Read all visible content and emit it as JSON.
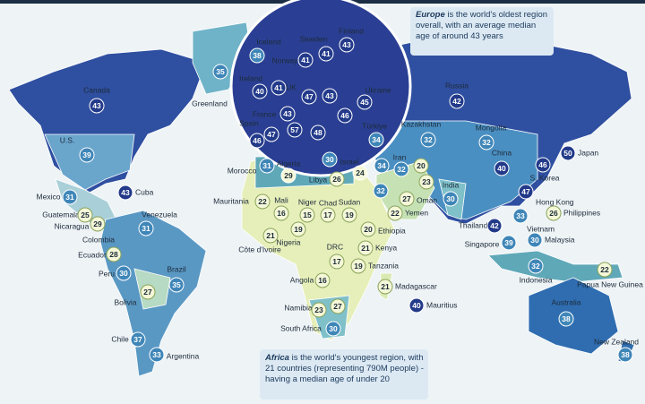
{
  "callouts": [
    {
      "lead": "Europe",
      "text": "is the world's oldest region overall, with an average median age of around 43 years"
    },
    {
      "lead": "Africa",
      "text": "is the world's youngest region, with 21 countries (representing 790M people) - having a median age of under 20"
    }
  ],
  "countries": [
    {
      "name": "Canada",
      "age": 43
    },
    {
      "name": "U.S.",
      "age": 39
    },
    {
      "name": "Mexico",
      "age": 31
    },
    {
      "name": "Cuba",
      "age": 43
    },
    {
      "name": "Guatemala",
      "age": 25
    },
    {
      "name": "Nicaragua",
      "age": 29
    },
    {
      "name": "Venezuela",
      "age": 31
    },
    {
      "name": "Colombia"
    },
    {
      "name": "Ecuador",
      "age": 28
    },
    {
      "name": "Peru",
      "age": 30
    },
    {
      "name": "Brazil",
      "age": 35
    },
    {
      "name": "Bolivia",
      "age": 27
    },
    {
      "name": "Chile",
      "age": 37
    },
    {
      "name": "Argentina",
      "age": 33
    },
    {
      "name": "Greenland",
      "age": 35
    },
    {
      "name": "Iceland",
      "age": 38
    },
    {
      "name": "Norway",
      "age": 41
    },
    {
      "name": "Sweden",
      "age": 41
    },
    {
      "name": "Finland",
      "age": 43
    },
    {
      "name": "Ireland",
      "age": 40
    },
    {
      "name": "UK",
      "age": 41
    },
    {
      "name": "France",
      "age": 43
    },
    {
      "name": "Spain",
      "age": 47
    },
    {
      "name": null,
      "age": 46
    },
    {
      "name": null,
      "age": 57
    },
    {
      "name": null,
      "age": 47
    },
    {
      "name": null,
      "age": 43
    },
    {
      "name": null,
      "age": 48
    },
    {
      "name": null,
      "age": 46
    },
    {
      "name": "Ukraine",
      "age": 45
    },
    {
      "name": "Türkiye",
      "age": 34
    },
    {
      "name": "Kazakhstan",
      "age": 32
    },
    {
      "name": "Russia",
      "age": 42
    },
    {
      "name": "Mongolia",
      "age": 32
    },
    {
      "name": "China",
      "age": 40
    },
    {
      "name": "Japan",
      "age": 50
    },
    {
      "name": "S. Korea",
      "age": 46
    },
    {
      "name": "Hong Kong",
      "age": 47
    },
    {
      "name": "Morocco",
      "age": 31
    },
    {
      "name": "Algeria",
      "age": 29
    },
    {
      "name": "Libya",
      "age": 26
    },
    {
      "name": null,
      "age": 30
    },
    {
      "name": "Israel",
      "age": 24
    },
    {
      "name": null,
      "age": 34
    },
    {
      "name": "Iran",
      "age": 32
    },
    {
      "name": null,
      "age": 20
    },
    {
      "name": null,
      "age": 23
    },
    {
      "name": null,
      "age": 32
    },
    {
      "name": "Oman",
      "age": 27
    },
    {
      "name": "Yemen",
      "age": 22
    },
    {
      "name": "India",
      "age": 30
    },
    {
      "name": "Thailand",
      "age": 42
    },
    {
      "name": "Vietnam",
      "age": 33
    },
    {
      "name": "Philippines",
      "age": 26
    },
    {
      "name": "Malaysia",
      "age": 30
    },
    {
      "name": "Singapore",
      "age": 39
    },
    {
      "name": "Indonesia",
      "age": 32
    },
    {
      "name": "Papua New Guinea",
      "age": 22
    },
    {
      "name": "Australia",
      "age": 38
    },
    {
      "name": "New Zealand",
      "age": 38
    },
    {
      "name": "Mauritania",
      "age": 22
    },
    {
      "name": "Mali",
      "age": 16
    },
    {
      "name": "Niger",
      "age": 15
    },
    {
      "name": "Chad",
      "age": 17
    },
    {
      "name": "Sudan",
      "age": 19
    },
    {
      "name": "Ethiopia",
      "age": 20
    },
    {
      "name": "Nigeria",
      "age": 19
    },
    {
      "name": "Côte d'Ivoire",
      "age": 21
    },
    {
      "name": "DRC",
      "age": 17
    },
    {
      "name": "Kenya",
      "age": 21
    },
    {
      "name": "Tanzania",
      "age": 19
    },
    {
      "name": "Angola",
      "age": 16
    },
    {
      "name": "Madagascar",
      "age": 21
    },
    {
      "name": "Mauritius",
      "age": 40
    },
    {
      "name": "Namibia",
      "age": 23
    },
    {
      "name": null,
      "age": 27
    },
    {
      "name": "South Africa",
      "age": 30
    }
  ]
}
